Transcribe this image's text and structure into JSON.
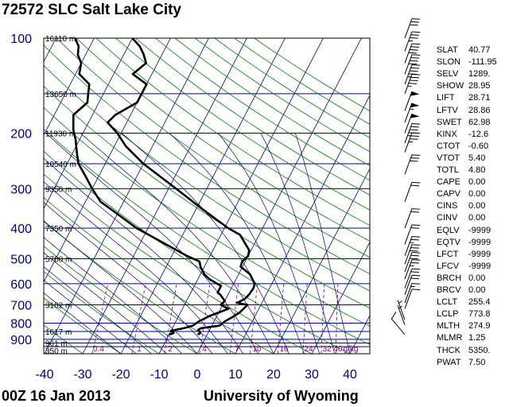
{
  "header": {
    "title": "72572 SLC Salt Lake City"
  },
  "footer": {
    "date": "00Z 16 Jan 2013",
    "source": "University of Wyoming"
  },
  "colors": {
    "isobar": "#000080",
    "isotherm": "#000080",
    "dry_adiabat": "#008000",
    "moist_adiabat": "#000080",
    "mixing_ratio": "#800080",
    "profile": "#000000",
    "pressure_label": "#000080",
    "temperature_label": "#000080"
  },
  "chart_data": {
    "type": "skew-t",
    "xlim": [
      -40,
      45
    ],
    "ylim": [
      1000,
      100
    ],
    "pressure_ticks": [
      100,
      200,
      300,
      400,
      500,
      600,
      700,
      800,
      900
    ],
    "temperature_ticks": [
      -40,
      -30,
      -20,
      -10,
      0,
      10,
      20,
      30,
      40
    ],
    "pressure_levels": [
      100,
      150,
      200,
      250,
      300,
      400,
      500,
      600,
      700,
      800,
      850,
      900,
      925,
      950
    ],
    "height_labels": [
      {
        "p": 100,
        "text": "16110 m"
      },
      {
        "p": 150,
        "text": "13650 m"
      },
      {
        "p": 200,
        "text": "11930 m"
      },
      {
        "p": 250,
        "text": "10540 m"
      },
      {
        "p": 300,
        "text": "9350 m"
      },
      {
        "p": 400,
        "text": "7350 m"
      },
      {
        "p": 500,
        "text": "5700 m"
      },
      {
        "p": 700,
        "text": "3102 m"
      },
      {
        "p": 850,
        "text": "1617 m"
      },
      {
        "p": 925,
        "text": "961 m"
      },
      {
        "p": 1000,
        "text": "350 m"
      }
    ],
    "mixing_ratio_labels": [
      "0.4",
      "1",
      "2",
      "4",
      "7",
      "10",
      "16",
      "24",
      "32",
      "40",
      "g/kg"
    ],
    "temperature_profile": [
      {
        "p": 870,
        "t": -2.5
      },
      {
        "p": 860,
        "t": -2
      },
      {
        "p": 850,
        "t": -2.5
      },
      {
        "p": 840,
        "t": -3
      },
      {
        "p": 830,
        "t": -2.5
      },
      {
        "p": 815,
        "t": 2
      },
      {
        "p": 790,
        "t": 2.8
      },
      {
        "p": 770,
        "t": 4
      },
      {
        "p": 740,
        "t": 5.5
      },
      {
        "p": 700,
        "t": 6.5
      },
      {
        "p": 690,
        "t": 3.5
      },
      {
        "p": 670,
        "t": 5
      },
      {
        "p": 650,
        "t": 5.5
      },
      {
        "p": 620,
        "t": 5.8
      },
      {
        "p": 600,
        "t": 5.5
      },
      {
        "p": 560,
        "t": 3
      },
      {
        "p": 530,
        "t": -0.5
      },
      {
        "p": 510,
        "t": -0.8
      },
      {
        "p": 490,
        "t": 0
      },
      {
        "p": 470,
        "t": -0.5
      },
      {
        "p": 420,
        "t": -5
      },
      {
        "p": 400,
        "t": -9
      },
      {
        "p": 350,
        "t": -18
      },
      {
        "p": 300,
        "t": -28
      },
      {
        "p": 250,
        "t": -40
      },
      {
        "p": 220,
        "t": -47
      },
      {
        "p": 200,
        "t": -51
      },
      {
        "p": 185,
        "t": -55
      },
      {
        "p": 175,
        "t": -54
      },
      {
        "p": 160,
        "t": -50
      },
      {
        "p": 150,
        "t": -50
      },
      {
        "p": 140,
        "t": -50
      },
      {
        "p": 130,
        "t": -55
      },
      {
        "p": 120,
        "t": -53
      },
      {
        "p": 112,
        "t": -55
      },
      {
        "p": 106,
        "t": -57
      },
      {
        "p": 100,
        "t": -60
      }
    ],
    "dewpoint_profile": [
      {
        "p": 870,
        "t": -10
      },
      {
        "p": 860,
        "t": -9
      },
      {
        "p": 845,
        "t": -10
      },
      {
        "p": 830,
        "t": -7
      },
      {
        "p": 815,
        "t": -5
      },
      {
        "p": 790,
        "t": -4
      },
      {
        "p": 760,
        "t": -2
      },
      {
        "p": 740,
        "t": 0
      },
      {
        "p": 720,
        "t": 2
      },
      {
        "p": 700,
        "t": -0.5
      },
      {
        "p": 680,
        "t": 0
      },
      {
        "p": 650,
        "t": -2
      },
      {
        "p": 640,
        "t": -3
      },
      {
        "p": 610,
        "t": -3
      },
      {
        "p": 580,
        "t": -7
      },
      {
        "p": 560,
        "t": -9
      },
      {
        "p": 530,
        "t": -11
      },
      {
        "p": 510,
        "t": -12
      },
      {
        "p": 490,
        "t": -16
      },
      {
        "p": 400,
        "t": -33
      },
      {
        "p": 350,
        "t": -42
      },
      {
        "p": 330,
        "t": -46
      },
      {
        "p": 300,
        "t": -50
      },
      {
        "p": 270,
        "t": -54
      },
      {
        "p": 250,
        "t": -57
      },
      {
        "p": 230,
        "t": -59
      },
      {
        "p": 210,
        "t": -61
      },
      {
        "p": 195,
        "t": -63
      },
      {
        "p": 175,
        "t": -65
      },
      {
        "p": 160,
        "t": -63
      },
      {
        "p": 150,
        "t": -64
      },
      {
        "p": 140,
        "t": -65
      },
      {
        "p": 130,
        "t": -69
      },
      {
        "p": 120,
        "t": -70
      },
      {
        "p": 113,
        "t": -72
      },
      {
        "p": 106,
        "t": -73
      },
      {
        "p": 100,
        "t": -75
      }
    ],
    "wind_barbs": [
      {
        "p": 870,
        "dir": 320,
        "spd": 10
      },
      {
        "p": 810,
        "dir": 340,
        "spd": 5
      },
      {
        "p": 780,
        "dir": 340,
        "spd": 5
      },
      {
        "p": 720,
        "dir": 20,
        "spd": 10
      },
      {
        "p": 690,
        "dir": 20,
        "spd": 15
      },
      {
        "p": 650,
        "dir": 20,
        "spd": 20
      },
      {
        "p": 620,
        "dir": 20,
        "spd": 20
      },
      {
        "p": 580,
        "dir": 20,
        "spd": 25
      },
      {
        "p": 550,
        "dir": 20,
        "spd": 30
      },
      {
        "p": 520,
        "dir": 20,
        "spd": 30
      },
      {
        "p": 490,
        "dir": 20,
        "spd": 25
      },
      {
        "p": 450,
        "dir": 20,
        "spd": 20
      },
      {
        "p": 400,
        "dir": 20,
        "spd": 20
      },
      {
        "p": 330,
        "dir": 20,
        "spd": 20
      },
      {
        "p": 270,
        "dir": 20,
        "spd": 30
      },
      {
        "p": 230,
        "dir": 20,
        "spd": 35
      },
      {
        "p": 215,
        "dir": 20,
        "spd": 45
      },
      {
        "p": 200,
        "dir": 20,
        "spd": 50
      },
      {
        "p": 185,
        "dir": 20,
        "spd": 55
      },
      {
        "p": 170,
        "dir": 20,
        "spd": 50
      },
      {
        "p": 150,
        "dir": 20,
        "spd": 45
      },
      {
        "p": 140,
        "dir": 20,
        "spd": 45
      },
      {
        "p": 130,
        "dir": 20,
        "spd": 40
      },
      {
        "p": 120,
        "dir": 20,
        "spd": 40
      },
      {
        "p": 110,
        "dir": 20,
        "spd": 35
      },
      {
        "p": 100,
        "dir": 20,
        "spd": 30
      }
    ]
  },
  "indices": [
    {
      "key": "SLAT",
      "value": "40.77"
    },
    {
      "key": "SLON",
      "value": "-111.95"
    },
    {
      "key": "SELV",
      "value": "1289."
    },
    {
      "key": "SHOW",
      "value": "28.95"
    },
    {
      "key": "LIFT",
      "value": "28.71"
    },
    {
      "key": "LFTV",
      "value": "28.86"
    },
    {
      "key": "SWET",
      "value": "62.98"
    },
    {
      "key": "KINX",
      "value": "-12.6"
    },
    {
      "key": "CTOT",
      "value": "-0.60"
    },
    {
      "key": "VTOT",
      "value": "5.40"
    },
    {
      "key": "TOTL",
      "value": "4.80"
    },
    {
      "key": "CAPE",
      "value": "0.00"
    },
    {
      "key": "CAPV",
      "value": "0.00"
    },
    {
      "key": "CINS",
      "value": "0.00"
    },
    {
      "key": "CINV",
      "value": "0.00"
    },
    {
      "key": "EQLV",
      "value": "-9999"
    },
    {
      "key": "EQTV",
      "value": "-9999"
    },
    {
      "key": "LFCT",
      "value": "-9999"
    },
    {
      "key": "LFCV",
      "value": "-9999"
    },
    {
      "key": "BRCH",
      "value": "0.00"
    },
    {
      "key": "BRCV",
      "value": "0.00"
    },
    {
      "key": "LCLT",
      "value": "255.4"
    },
    {
      "key": "LCLP",
      "value": "773.8"
    },
    {
      "key": "MLTH",
      "value": "274.9"
    },
    {
      "key": "MLMR",
      "value": "1.25"
    },
    {
      "key": "THCK",
      "value": "5350."
    },
    {
      "key": "PWAT",
      "value": "7.50"
    }
  ]
}
